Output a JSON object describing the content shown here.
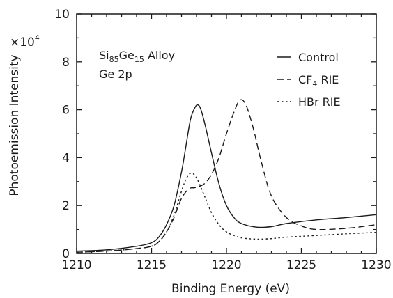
{
  "chart_data": {
    "type": "line",
    "xlabel": "Binding Energy (eV)",
    "ylabel": "Photoemission Intensity",
    "y_multiplier": "×10",
    "y_multiplier_exp": "4",
    "xlim": [
      1210,
      1230
    ],
    "ylim": [
      0,
      10
    ],
    "x_ticks": [
      1210,
      1215,
      1220,
      1225,
      1230
    ],
    "y_ticks": [
      0,
      2,
      4,
      6,
      8,
      10
    ],
    "grid": false,
    "legend_position": "top-right",
    "annotation": {
      "line1_prefix": "Si",
      "line1_sub1": "85",
      "line1_mid": "Ge",
      "line1_sub2": "15",
      "line1_suffix": " Alloy",
      "line2": "Ge 2p"
    },
    "series": [
      {
        "name": "Control",
        "name_main": "Control",
        "name_sub": "",
        "name_suffix": "",
        "dash": "solid",
        "x": [
          1210,
          1212,
          1214,
          1215,
          1215.5,
          1216,
          1216.5,
          1217,
          1217.3,
          1217.6,
          1217.9,
          1218.1,
          1218.3,
          1218.6,
          1219,
          1219.5,
          1220,
          1220.5,
          1221,
          1222,
          1223,
          1224,
          1226,
          1228,
          1230
        ],
        "y": [
          0.1,
          0.15,
          0.3,
          0.45,
          0.7,
          1.2,
          2.0,
          3.4,
          4.5,
          5.6,
          6.1,
          6.2,
          6.0,
          5.3,
          4.2,
          2.9,
          2.0,
          1.5,
          1.25,
          1.1,
          1.12,
          1.25,
          1.4,
          1.5,
          1.62
        ]
      },
      {
        "name": "CF4 RIE",
        "name_main": "CF",
        "name_sub": "4",
        "name_suffix": " RIE",
        "dash": "dashed",
        "x": [
          1210,
          1212,
          1214,
          1215,
          1215.5,
          1216,
          1216.5,
          1217,
          1217.5,
          1217.9,
          1218.5,
          1219,
          1219.5,
          1220,
          1220.5,
          1220.9,
          1221.3,
          1221.8,
          1222.3,
          1223,
          1224,
          1225,
          1226,
          1228,
          1230
        ],
        "y": [
          0.05,
          0.1,
          0.2,
          0.3,
          0.5,
          0.9,
          1.5,
          2.3,
          2.7,
          2.75,
          2.9,
          3.3,
          4.0,
          5.0,
          5.9,
          6.4,
          6.2,
          5.2,
          3.9,
          2.4,
          1.5,
          1.15,
          1.0,
          1.05,
          1.2
        ]
      },
      {
        "name": "HBr RIE",
        "name_main": "HBr RIE",
        "name_sub": "",
        "name_suffix": "",
        "dash": "dotted",
        "x": [
          1210,
          1212,
          1214,
          1215,
          1215.5,
          1216,
          1216.5,
          1217,
          1217.3,
          1217.6,
          1217.9,
          1218.2,
          1218.6,
          1219,
          1219.5,
          1220,
          1220.5,
          1221,
          1222,
          1223,
          1224,
          1226,
          1228,
          1230
        ],
        "y": [
          0.05,
          0.1,
          0.2,
          0.3,
          0.5,
          0.9,
          1.6,
          2.6,
          3.1,
          3.35,
          3.25,
          2.9,
          2.3,
          1.7,
          1.2,
          0.9,
          0.75,
          0.65,
          0.6,
          0.62,
          0.68,
          0.75,
          0.82,
          0.88
        ]
      }
    ]
  }
}
